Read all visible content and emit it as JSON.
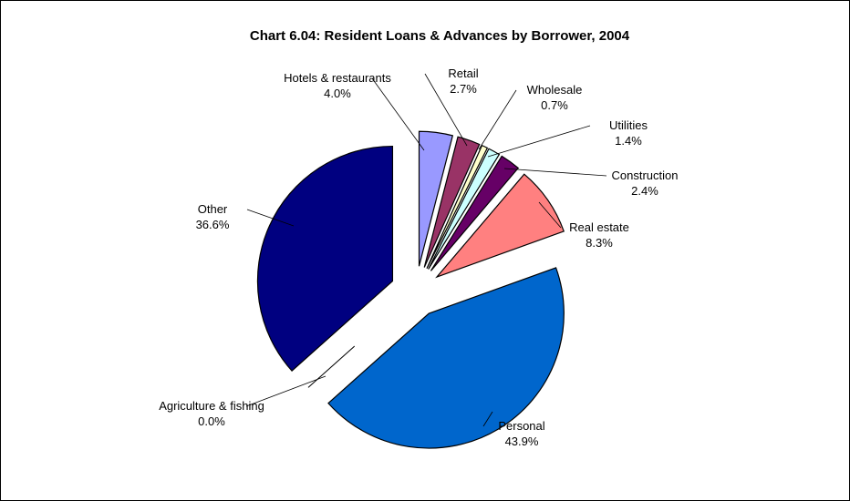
{
  "chart_data": {
    "type": "pie",
    "title": "Chart 6.04: Resident Loans & Advances by Borrower, 2004",
    "slices": [
      {
        "name": "Hotels & restaurants",
        "value": 4.0,
        "value_label": "4.0%",
        "color": "#9999FF"
      },
      {
        "name": "Retail",
        "value": 2.7,
        "value_label": "2.7%",
        "color": "#993366"
      },
      {
        "name": "Wholesale",
        "value": 0.7,
        "value_label": "0.7%",
        "color": "#FFFFCC"
      },
      {
        "name": "Utilities",
        "value": 1.4,
        "value_label": "1.4%",
        "color": "#CCFFFF"
      },
      {
        "name": "Construction",
        "value": 2.4,
        "value_label": "2.4%",
        "color": "#660066"
      },
      {
        "name": "Real estate",
        "value": 8.3,
        "value_label": "8.3%",
        "color": "#FF8080"
      },
      {
        "name": "Personal",
        "value": 43.9,
        "value_label": "43.9%",
        "color": "#0066CC"
      },
      {
        "name": "Agriculture & fishing",
        "value": 0.0,
        "value_label": "0.0%",
        "color": "#CCCCFF"
      },
      {
        "name": "Other",
        "value": 36.6,
        "value_label": "36.6%",
        "color": "#000080"
      }
    ],
    "start_angle_deg": 0,
    "direction": "clockwise",
    "exploded": true,
    "legend": "none"
  }
}
